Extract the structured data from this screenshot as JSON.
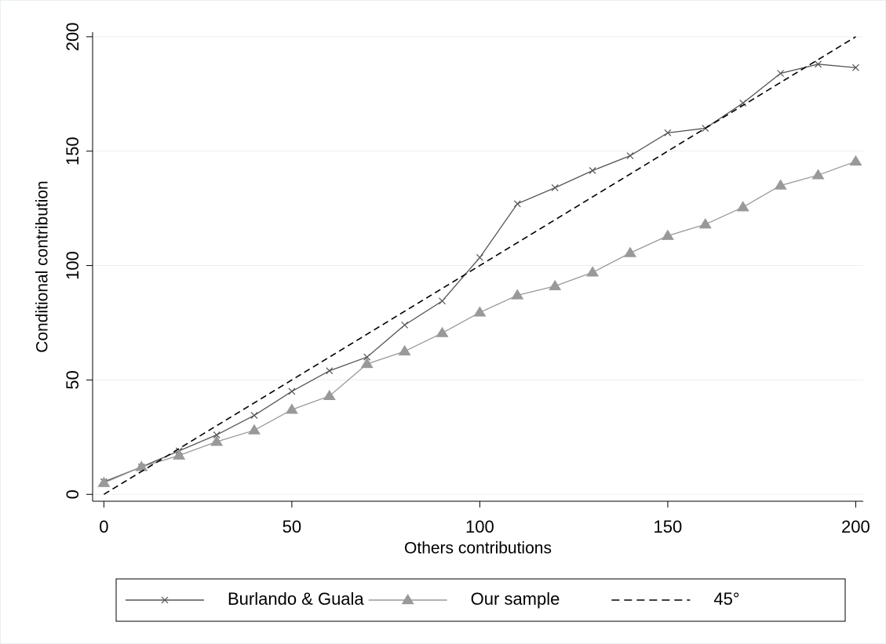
{
  "chart_data": {
    "type": "line",
    "xlabel": "Others contributions",
    "ylabel": "Conditional contribution",
    "x": [
      0,
      10,
      20,
      30,
      40,
      50,
      60,
      70,
      80,
      90,
      100,
      110,
      120,
      130,
      140,
      150,
      160,
      170,
      180,
      190,
      200
    ],
    "series": [
      {
        "name": "Burlando & Guala",
        "color": "#555555",
        "marker": "x",
        "values": [
          5.5,
          12,
          19,
          26,
          34.5,
          45,
          54,
          60,
          74,
          84.5,
          103.5,
          127,
          134,
          141.5,
          148,
          158,
          160,
          171,
          184,
          188,
          186.5
        ]
      },
      {
        "name": "Our sample",
        "color": "#999999",
        "marker": "triangle",
        "values": [
          5,
          12,
          17,
          23,
          28,
          37,
          43,
          57,
          62.5,
          70.5,
          79.5,
          87,
          91,
          97,
          105.5,
          113,
          118,
          125.5,
          135,
          139.5,
          145.5
        ]
      },
      {
        "name": "45°",
        "color": "#000000",
        "dash": true,
        "x": [
          0,
          200
        ],
        "values": [
          0,
          200
        ]
      }
    ],
    "xlim": [
      -3,
      202
    ],
    "ylim": [
      -3,
      202
    ],
    "xticks": [
      0,
      50,
      100,
      150,
      200
    ],
    "yticks": [
      0,
      50,
      100,
      150,
      200
    ],
    "grid": true,
    "legend": "bottom"
  }
}
